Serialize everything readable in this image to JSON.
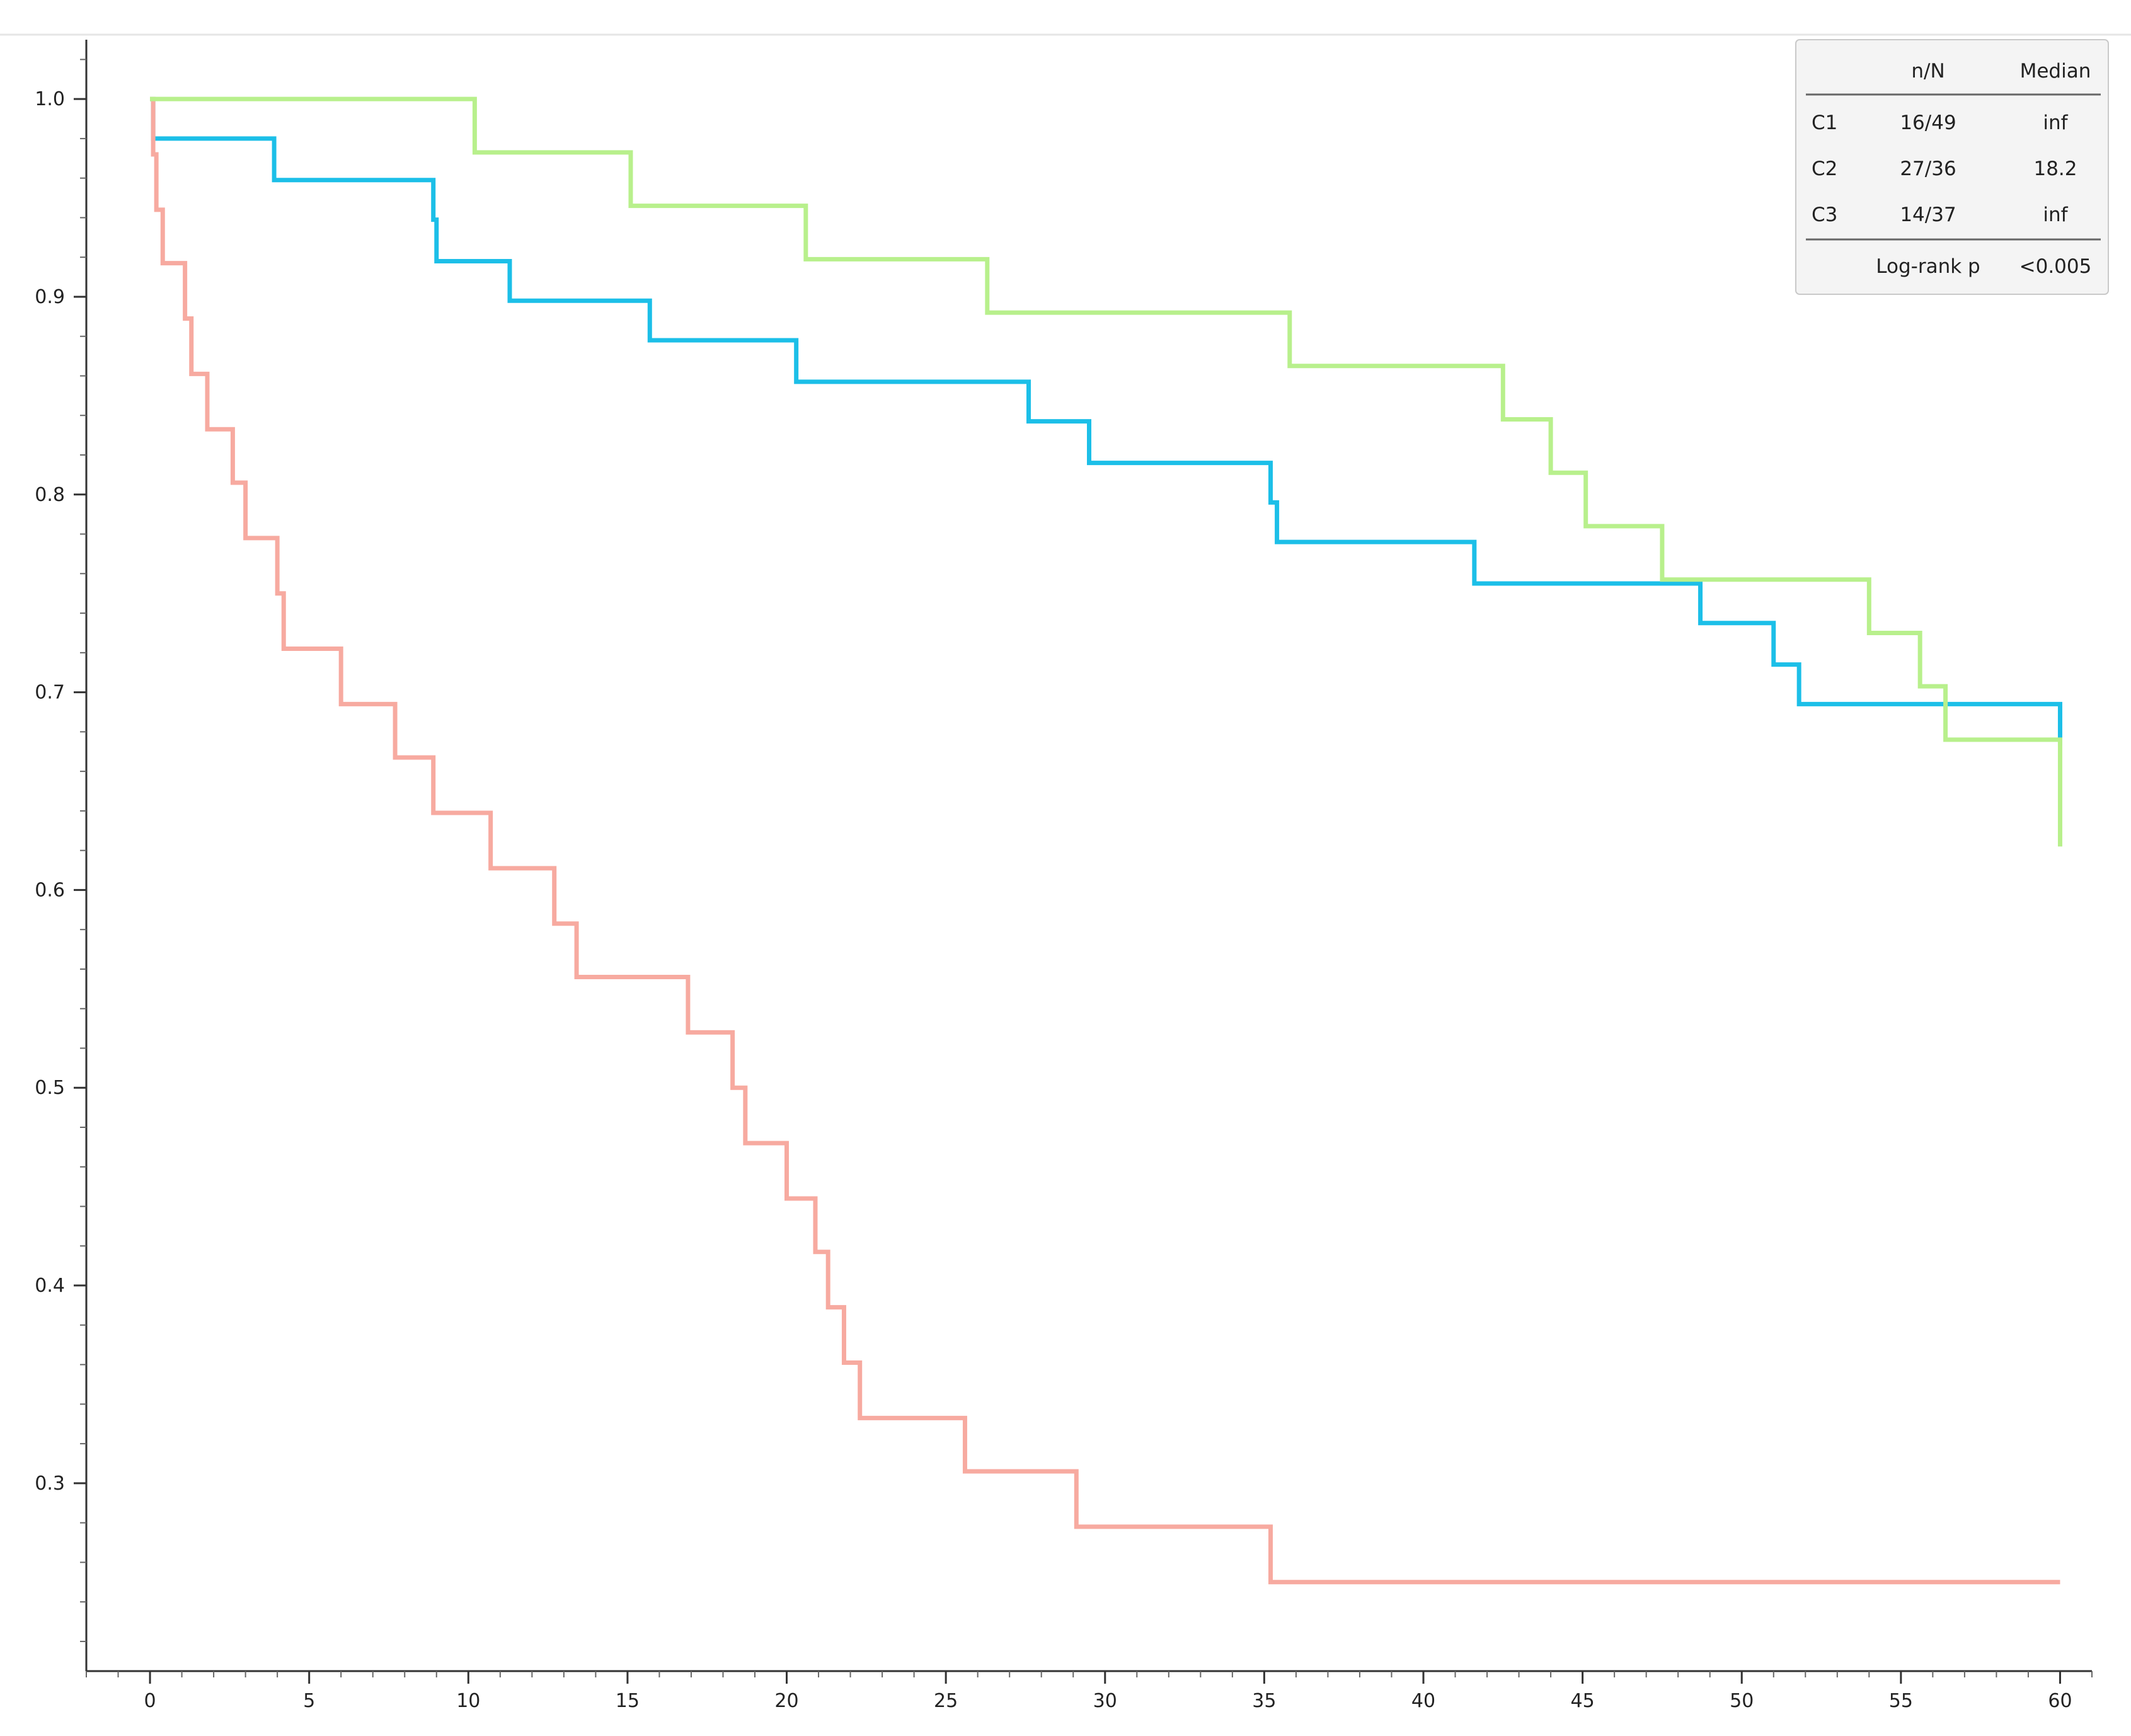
{
  "chart_data": {
    "type": "line",
    "subtype": "kaplan-meier-step",
    "title": "",
    "xlabel": "",
    "ylabel": "",
    "xlim": [
      -2,
      61
    ],
    "ylim": [
      0.205,
      1.03
    ],
    "x_ticks": [
      0,
      5,
      10,
      15,
      20,
      25,
      30,
      35,
      40,
      45,
      50,
      55,
      60
    ],
    "y_ticks": [
      0.3,
      0.4,
      0.5,
      0.6,
      0.7,
      0.8,
      0.9,
      1.0
    ],
    "x_tick_labels": [
      "0",
      "5",
      "10",
      "15",
      "20",
      "25",
      "30",
      "35",
      "40",
      "45",
      "50",
      "55",
      "60"
    ],
    "y_tick_labels": [
      "0.3",
      "0.4",
      "0.5",
      "0.6",
      "0.7",
      "0.8",
      "0.9",
      "1.0"
    ],
    "x_minor_step": 1,
    "y_minor_step": 0.02,
    "grid": false,
    "legend_position": "top-right",
    "series": [
      {
        "name": "C1",
        "color": "#1cbfe8",
        "x": [
          0.1,
          3.9,
          8.9,
          9.0,
          11.3,
          15.7,
          20.3,
          27.6,
          29.5,
          35.2,
          35.4,
          41.6,
          48.7,
          51.0,
          51.8,
          60.0
        ],
        "y": [
          0.98,
          0.959,
          0.939,
          0.918,
          0.898,
          0.878,
          0.857,
          0.837,
          0.816,
          0.796,
          0.776,
          0.755,
          0.735,
          0.714,
          0.694,
          0.673
        ],
        "end_x": 60.0
      },
      {
        "name": "C2",
        "color": "#f7aaa0",
        "x": [
          0.1,
          0.2,
          0.4,
          1.1,
          1.3,
          1.8,
          2.6,
          3.0,
          4.0,
          4.2,
          6.0,
          7.7,
          8.9,
          10.7,
          12.7,
          13.4,
          16.9,
          18.3,
          18.7,
          20.0,
          20.9,
          21.3,
          21.8,
          22.3,
          25.6,
          29.1,
          35.2
        ],
        "y": [
          0.972,
          0.944,
          0.917,
          0.889,
          0.861,
          0.833,
          0.806,
          0.778,
          0.75,
          0.722,
          0.694,
          0.667,
          0.639,
          0.611,
          0.583,
          0.556,
          0.528,
          0.5,
          0.472,
          0.444,
          0.417,
          0.389,
          0.361,
          0.333,
          0.306,
          0.278,
          0.25
        ],
        "end_x": 60.0
      },
      {
        "name": "C3",
        "color": "#b8f08c",
        "x": [
          10.2,
          15.1,
          20.6,
          26.3,
          35.8,
          42.5,
          44.0,
          45.1,
          47.5,
          54.0,
          55.6,
          56.4,
          60.0
        ],
        "y": [
          0.973,
          0.946,
          0.919,
          0.892,
          0.865,
          0.838,
          0.811,
          0.784,
          0.757,
          0.73,
          0.703,
          0.676,
          0.622
        ],
        "end_x": 60.0
      }
    ]
  },
  "legend": {
    "header_nN": "n/N",
    "header_median": "Median",
    "rows": [
      {
        "label": "C1",
        "nN": "16/49",
        "median": "inf",
        "color": "#1cbfe8"
      },
      {
        "label": "C2",
        "nN": "27/36",
        "median": "18.2",
        "color": "#f7aaa0"
      },
      {
        "label": "C3",
        "nN": "14/37",
        "median": "inf",
        "color": "#b8f08c"
      }
    ],
    "footer_label": "Log-rank p",
    "footer_value": "<0.005"
  }
}
